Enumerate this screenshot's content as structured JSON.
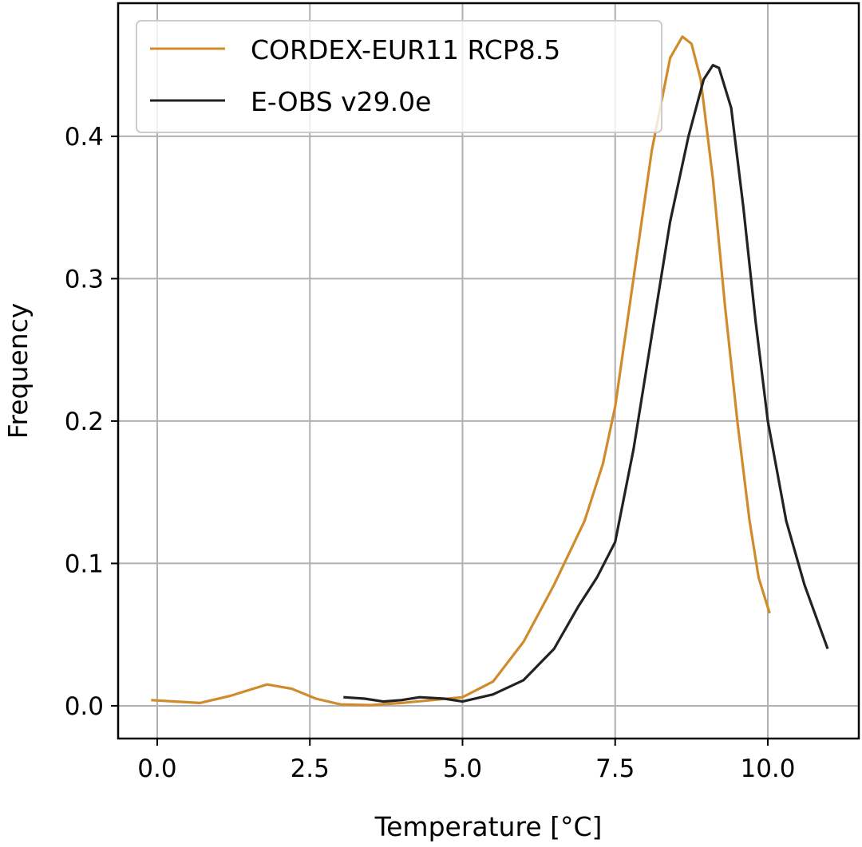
{
  "chart_data": {
    "type": "line",
    "title": "",
    "xlabel": "Temperature [°C]",
    "ylabel": "Frequency",
    "xlim": [
      -0.64,
      11.49
    ],
    "ylim": [
      -0.023,
      0.4935
    ],
    "xticks": [
      0.0,
      2.5,
      5.0,
      7.5,
      10.0
    ],
    "xtick_labels": [
      "0.0",
      "2.5",
      "5.0",
      "7.5",
      "10.0"
    ],
    "yticks": [
      0.0,
      0.1,
      0.2,
      0.3,
      0.4
    ],
    "ytick_labels": [
      "0.0",
      "0.1",
      "0.2",
      "0.3",
      "0.4"
    ],
    "grid": true,
    "legend_position": "upper-left",
    "series": [
      {
        "name": "CORDEX-EUR11 RCP8.5",
        "color": "#d08c2c",
        "x": [
          -0.1,
          0.3,
          0.7,
          1.2,
          1.8,
          2.2,
          2.6,
          3.0,
          3.5,
          4.0,
          4.5,
          5.0,
          5.5,
          6.0,
          6.5,
          7.0,
          7.3,
          7.5,
          7.8,
          8.1,
          8.4,
          8.6,
          8.75,
          8.9,
          9.1,
          9.3,
          9.5,
          9.7,
          9.85,
          10.03
        ],
        "y": [
          0.004,
          0.003,
          0.002,
          0.007,
          0.015,
          0.012,
          0.005,
          0.001,
          0.0005,
          0.002,
          0.004,
          0.006,
          0.017,
          0.045,
          0.085,
          0.13,
          0.17,
          0.21,
          0.3,
          0.39,
          0.455,
          0.47,
          0.465,
          0.44,
          0.37,
          0.28,
          0.2,
          0.13,
          0.09,
          0.065
        ]
      },
      {
        "name": "E-OBS v29.0e",
        "color": "#222222",
        "x": [
          3.05,
          3.4,
          3.7,
          4.0,
          4.3,
          4.7,
          5.0,
          5.5,
          6.0,
          6.5,
          6.9,
          7.2,
          7.5,
          7.8,
          8.1,
          8.4,
          8.7,
          8.95,
          9.1,
          9.2,
          9.4,
          9.6,
          9.8,
          10.0,
          10.3,
          10.6,
          10.98
        ],
        "y": [
          0.006,
          0.005,
          0.003,
          0.004,
          0.006,
          0.005,
          0.003,
          0.008,
          0.018,
          0.04,
          0.07,
          0.09,
          0.115,
          0.18,
          0.26,
          0.34,
          0.4,
          0.44,
          0.45,
          0.448,
          0.42,
          0.35,
          0.27,
          0.2,
          0.13,
          0.085,
          0.04
        ]
      }
    ]
  }
}
